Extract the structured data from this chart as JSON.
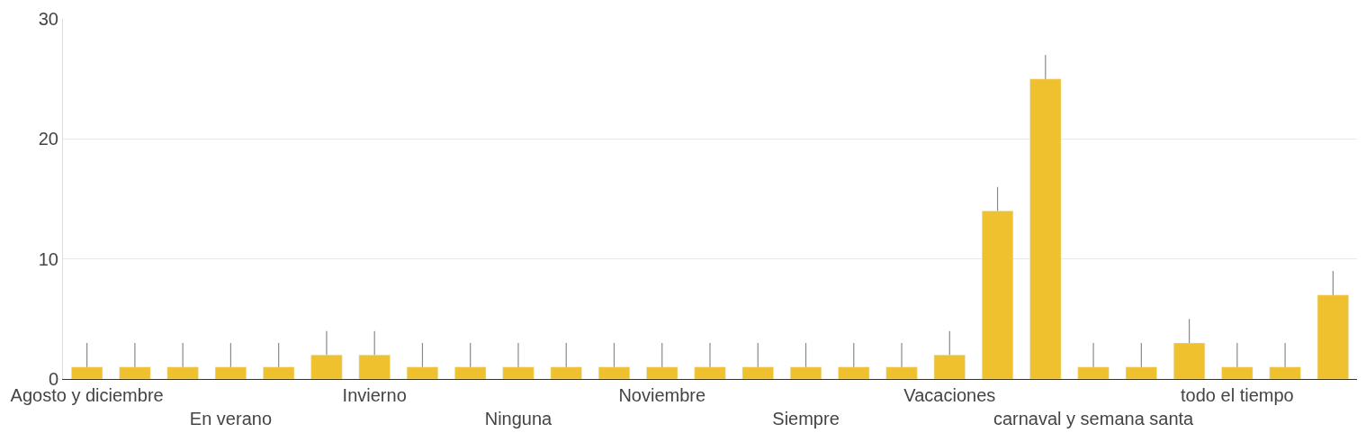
{
  "chart_data": {
    "type": "bar",
    "categories": [
      "Agosto y diciembre",
      null,
      null,
      "En verano",
      null,
      null,
      "Invierno",
      null,
      null,
      "Ninguna",
      null,
      null,
      "Noviembre",
      null,
      null,
      "Siempre",
      null,
      null,
      "Vacaciones",
      null,
      null,
      "carnaval y semana santa",
      null,
      null,
      "todo el tiempo",
      null,
      null
    ],
    "values": [
      1,
      1,
      1,
      1,
      1,
      2,
      2,
      1,
      1,
      1,
      1,
      1,
      1,
      1,
      1,
      1,
      1,
      1,
      2,
      14,
      25,
      1,
      1,
      3,
      1,
      1,
      7
    ],
    "errors": [
      [
        1,
        3
      ],
      [
        1,
        3
      ],
      [
        1,
        3
      ],
      [
        1,
        3
      ],
      [
        1,
        3
      ],
      [
        2,
        4
      ],
      [
        2,
        4
      ],
      [
        1,
        3
      ],
      [
        1,
        3
      ],
      [
        1,
        3
      ],
      [
        1,
        3
      ],
      [
        1,
        3
      ],
      [
        1,
        3
      ],
      [
        1,
        3
      ],
      [
        1,
        3
      ],
      [
        1,
        3
      ],
      [
        1,
        3
      ],
      [
        1,
        3
      ],
      [
        2,
        4
      ],
      [
        14,
        16
      ],
      [
        25,
        27
      ],
      [
        1,
        3
      ],
      [
        1,
        3
      ],
      [
        3,
        5
      ],
      [
        1,
        3
      ],
      [
        1,
        3
      ],
      [
        7,
        9
      ]
    ],
    "color": "#f0c12e",
    "ylim": [
      0,
      30
    ],
    "yticks": [
      0,
      10,
      20,
      30
    ],
    "grid": "y"
  }
}
